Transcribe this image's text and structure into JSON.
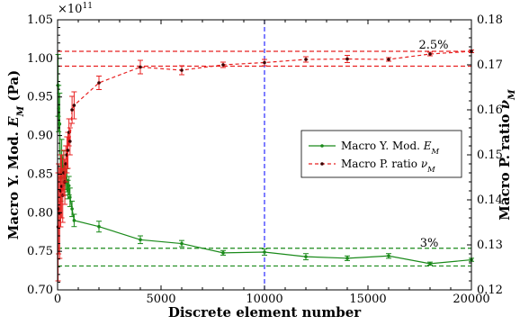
{
  "chart_data": {
    "type": "line",
    "xlabel": "Discrete element number",
    "ylabel_left": "Macro Y. Mod. E_M (Pa)",
    "ylabel_right": "Macro P. ratio ν_M",
    "left_axis_multiplier": "×10^11",
    "x_range": [
      0,
      20000
    ],
    "x_ticks": [
      0,
      5000,
      10000,
      15000,
      20000
    ],
    "x_tick_labels": [
      "0",
      "5000",
      "10000",
      "15000",
      "20000"
    ],
    "y_left_range": [
      0.7,
      1.05
    ],
    "y_left_ticks": [
      0.7,
      0.75,
      0.8,
      0.85,
      0.9,
      0.95,
      1.0,
      1.05
    ],
    "y_left_tick_labels": [
      "0.70",
      "0.75",
      "0.80",
      "0.85",
      "0.90",
      "0.95",
      "1.00",
      "1.05"
    ],
    "y_right_range": [
      0.12,
      0.18
    ],
    "y_right_ticks": [
      0.12,
      0.13,
      0.14,
      0.15,
      0.16,
      0.17,
      0.18
    ],
    "y_right_tick_labels": [
      "0.12",
      "0.13",
      "0.14",
      "0.15",
      "0.16",
      "0.17",
      "0.18"
    ],
    "series": [
      {
        "name": "Macro Y. Mod. E_M",
        "axis": "left",
        "color": "#1a8a1a",
        "style": "solid",
        "x": [
          25,
          50,
          100,
          150,
          200,
          250,
          300,
          350,
          400,
          450,
          500,
          550,
          600,
          700,
          800,
          2000,
          4000,
          6000,
          8000,
          10000,
          12000,
          14000,
          16000,
          18000,
          20000
        ],
        "y": [
          0.965,
          0.935,
          0.915,
          0.845,
          0.87,
          0.855,
          0.86,
          0.838,
          0.845,
          0.842,
          0.83,
          0.835,
          0.82,
          0.805,
          0.79,
          0.782,
          0.765,
          0.76,
          0.748,
          0.749,
          0.743,
          0.741,
          0.744,
          0.734,
          0.739
        ],
        "err": [
          0.04,
          0.03,
          0.04,
          0.03,
          0.025,
          0.02,
          0.02,
          0.015,
          0.015,
          0.015,
          0.012,
          0.012,
          0.012,
          0.01,
          0.008,
          0.007,
          0.005,
          0.004,
          0.003,
          0.004,
          0.004,
          0.003,
          0.003,
          0.002,
          0.002
        ]
      },
      {
        "name": "Macro P. ratio ν_M",
        "axis": "right",
        "color": "#e82020",
        "style": "dashed",
        "x": [
          25,
          50,
          100,
          150,
          200,
          250,
          300,
          350,
          400,
          450,
          500,
          550,
          600,
          700,
          800,
          2000,
          4000,
          6000,
          8000,
          10000,
          12000,
          14000,
          16000,
          18000,
          20000
        ],
        "y": [
          0.134,
          0.138,
          0.137,
          0.142,
          0.143,
          0.141,
          0.146,
          0.144,
          0.148,
          0.15,
          0.151,
          0.155,
          0.153,
          0.16,
          0.161,
          0.166,
          0.1695,
          0.1688,
          0.17,
          0.1705,
          0.1712,
          0.1713,
          0.1712,
          0.1724,
          0.173
        ],
        "err": [
          0.012,
          0.01,
          0.01,
          0.008,
          0.007,
          0.006,
          0.005,
          0.005,
          0.004,
          0.004,
          0.004,
          0.003,
          0.003,
          0.003,
          0.003,
          0.0015,
          0.0015,
          0.001,
          0.0006,
          0.0007,
          0.0006,
          0.0008,
          0.0004,
          0.0004,
          0.0003
        ]
      }
    ],
    "reference_lines": {
      "green_dashed_left": [
        0.754,
        0.731
      ],
      "red_dashed_right": [
        0.173,
        0.1697
      ],
      "blue_vertical_x": 10000
    },
    "annotations": {
      "red_band": "2.5%",
      "green_band": "3%"
    },
    "legend": {
      "position": "center-right",
      "entries": [
        "Macro Y. Mod. E_M",
        "Macro P. ratio ν_M"
      ]
    },
    "grid": false,
    "colors": {
      "green": "#1a8a1a",
      "red": "#e82020",
      "blue": "#2a2aff",
      "dark_marker": "#3a0000"
    }
  }
}
